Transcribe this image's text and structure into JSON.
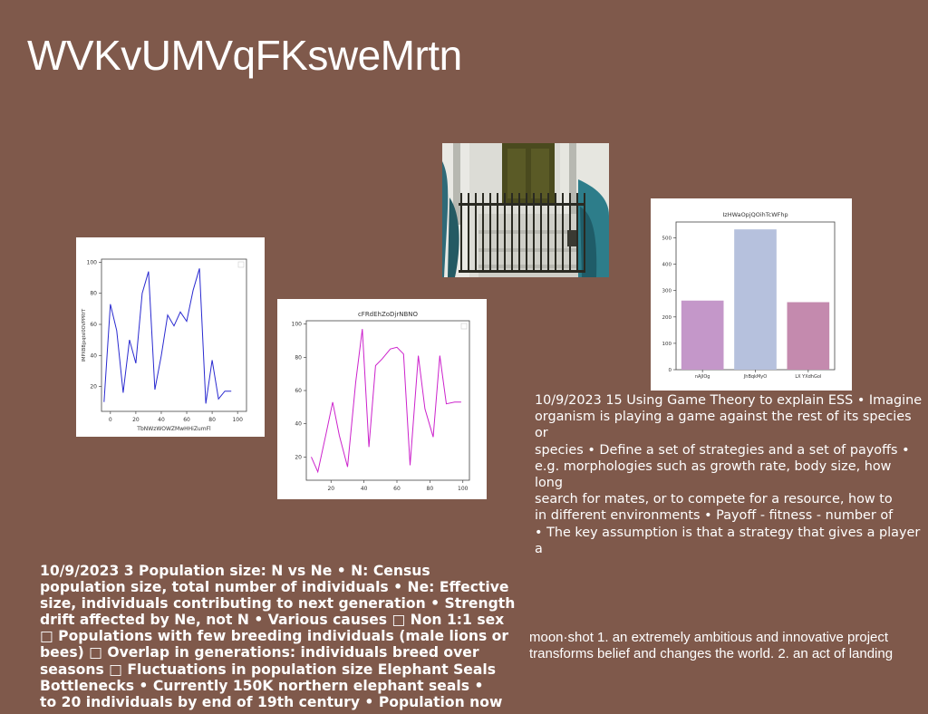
{
  "slide": {
    "title": "WVKvUMVqFKsweMrtn"
  },
  "text_blocks": {
    "right": [
      "10/9/2023 15 Using Game Theory to explain ESS • Imagine",
      "organism is playing a game against the rest of its species or",
      "species • Define a set of strategies and a set of payoffs •",
      "e.g. morphologies such as growth rate, body size, how long",
      "search for mates, or to compete for a resource, how to",
      "in different environments • Payoff - fitness - number of",
      "• The key assumption is that a strategy that gives a player a"
    ],
    "bold": [
      "10/9/2023 3 Population size: N vs Ne • N: Census",
      "population size, total number of individuals • Ne: Effective",
      "size, individuals contributing to next generation • Strength",
      "drift affected by Ne, not N • Various causes □ Non 1:1 sex",
      "□ Populations with few breeding individuals (male lions or",
      "bees) □ Overlap in generations: individuals breed over",
      "seasons □ Fluctuations in population size Elephant Seals",
      "Bottlenecks • Currently 150K northern elephant seals •",
      "to 20 individuals by end of 19th century • Population now"
    ],
    "small": [
      "moon·shot 1. an extremely ambitious and innovative project",
      "transforms belief and changes the world. 2. an act of landing"
    ]
  },
  "colors": {
    "background": "#7f594b",
    "line_blue": "#2a2ad0",
    "line_magenta": "#cc22cc",
    "bar_1": "#c497c9",
    "bar_2": "#b6c1dd",
    "bar_3": "#c48aae"
  },
  "chart_data": [
    {
      "type": "line",
      "title": "",
      "xlabel": "TbNWzWOWZMwHHiZumFl",
      "ylabel": "lMPXBBjpqtsl0OVPPRYT",
      "xticks": [
        0,
        20,
        40,
        60,
        80,
        100
      ],
      "yticks": [
        20,
        40,
        60,
        80,
        100
      ],
      "xlim": [
        -7,
        107
      ],
      "ylim": [
        4,
        102
      ],
      "series": [
        {
          "x": [
            -5,
            0,
            5,
            10,
            15,
            20,
            25,
            30,
            35,
            40,
            45,
            50,
            55,
            60,
            65,
            70,
            75,
            80,
            85,
            90,
            95
          ],
          "y": [
            10,
            73,
            56,
            16,
            50,
            35,
            80,
            94,
            18,
            40,
            66,
            59,
            68,
            62,
            82,
            96,
            9,
            37,
            12,
            17,
            17
          ]
        }
      ]
    },
    {
      "type": "line",
      "title": "cFRdEhZoDjrNBNO",
      "xlabel": "",
      "ylabel": "",
      "xticks": [
        20,
        40,
        60,
        80,
        100
      ],
      "yticks": [
        20,
        40,
        60,
        80,
        100
      ],
      "xlim": [
        5,
        104
      ],
      "ylim": [
        6,
        102
      ],
      "series": [
        {
          "x": [
            8,
            12,
            17,
            21,
            25,
            30,
            35,
            39,
            43,
            47,
            51,
            56,
            60,
            64,
            68,
            73,
            77,
            82,
            86,
            90,
            95,
            99
          ],
          "y": [
            20,
            11,
            34,
            53,
            33,
            14,
            65,
            97,
            26,
            75,
            79,
            85,
            86,
            82,
            15,
            81,
            49,
            32,
            81,
            52,
            53,
            53
          ]
        }
      ]
    },
    {
      "type": "bar",
      "title": "IzHWaOpjQOihTcWFhp",
      "categories": [
        "nAJIOg",
        "JhBqkMyO",
        "LX YXdhGol"
      ],
      "values": [
        262,
        532,
        256
      ],
      "yticks": [
        0,
        100,
        200,
        300,
        400,
        500
      ],
      "ylim": [
        0,
        560
      ]
    }
  ]
}
